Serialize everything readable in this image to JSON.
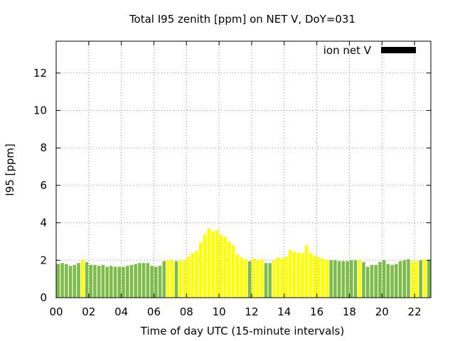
{
  "chart_data": {
    "type": "bar",
    "title": "Total I95 zenith [ppm] on NET V, DoY=031",
    "xlabel": "Time of day UTC (15-minute intervals)",
    "ylabel": "I95 [ppm]",
    "xlim": [
      0,
      23
    ],
    "ylim": [
      0,
      13.7
    ],
    "grid": true,
    "legend": {
      "position": "top-right",
      "entries": [
        "ion net V"
      ]
    },
    "x_ticks": [
      "00",
      "02",
      "04",
      "06",
      "08",
      "10",
      "12",
      "14",
      "16",
      "18",
      "20",
      "22"
    ],
    "y_ticks": [
      "0",
      "2",
      "4",
      "6",
      "8",
      "10",
      "12"
    ],
    "colors": {
      "green": "#7cbc48",
      "yellow": "#ffff00",
      "legend": "#000000",
      "grid": "#888888"
    },
    "x": [
      0.125,
      0.375,
      0.625,
      0.875,
      1.125,
      1.375,
      1.625,
      1.875,
      2.125,
      2.375,
      2.625,
      2.875,
      3.125,
      3.375,
      3.625,
      3.875,
      4.125,
      4.375,
      4.625,
      4.875,
      5.125,
      5.375,
      5.625,
      5.875,
      6.125,
      6.375,
      6.625,
      6.875,
      7.125,
      7.375,
      7.625,
      7.875,
      8.125,
      8.375,
      8.625,
      8.875,
      9.125,
      9.375,
      9.625,
      9.875,
      10.125,
      10.375,
      10.625,
      10.875,
      11.125,
      11.375,
      11.625,
      11.875,
      12.125,
      12.375,
      12.625,
      12.875,
      13.125,
      13.375,
      13.625,
      13.875,
      14.125,
      14.375,
      14.625,
      14.875,
      15.125,
      15.375,
      15.625,
      15.875,
      16.125,
      16.375,
      16.625,
      16.875,
      17.125,
      17.375,
      17.625,
      17.875,
      18.125,
      18.375,
      18.625,
      18.875,
      19.125,
      19.375,
      19.625,
      19.875,
      20.125,
      20.375,
      20.625,
      20.875,
      21.125,
      21.375,
      21.625,
      21.875,
      22.125,
      22.375,
      22.625,
      22.875
    ],
    "values": [
      1.8,
      1.85,
      1.8,
      1.7,
      1.75,
      1.85,
      2.0,
      1.9,
      1.75,
      1.75,
      1.7,
      1.75,
      1.65,
      1.7,
      1.65,
      1.65,
      1.65,
      1.7,
      1.75,
      1.8,
      1.85,
      1.85,
      1.85,
      1.7,
      1.65,
      1.7,
      1.95,
      2.0,
      2.0,
      1.95,
      2.0,
      2.0,
      2.2,
      2.4,
      2.5,
      2.95,
      3.4,
      3.7,
      3.55,
      3.6,
      3.35,
      3.25,
      3.0,
      2.8,
      2.3,
      2.15,
      2.05,
      1.95,
      2.1,
      2.0,
      2.05,
      1.85,
      1.85,
      2.0,
      2.15,
      2.1,
      2.2,
      2.55,
      2.45,
      2.4,
      2.4,
      2.8,
      2.4,
      2.25,
      2.15,
      2.1,
      2.0,
      2.0,
      2.0,
      1.95,
      1.95,
      1.95,
      2.0,
      2.0,
      2.0,
      1.9,
      1.65,
      1.75,
      1.75,
      1.9,
      2.0,
      1.8,
      1.75,
      1.8,
      1.95,
      2.0,
      2.05,
      1.95,
      1.95,
      2.0,
      2.05,
      2.0
    ],
    "color_index": [
      "g",
      "g",
      "g",
      "g",
      "g",
      "g",
      "y",
      "g",
      "g",
      "g",
      "g",
      "g",
      "g",
      "g",
      "g",
      "g",
      "g",
      "g",
      "g",
      "g",
      "g",
      "g",
      "g",
      "g",
      "g",
      "g",
      "g",
      "y",
      "y",
      "g",
      "y",
      "y",
      "y",
      "y",
      "y",
      "y",
      "y",
      "y",
      "y",
      "y",
      "y",
      "y",
      "y",
      "y",
      "y",
      "y",
      "y",
      "g",
      "y",
      "y",
      "y",
      "g",
      "g",
      "y",
      "y",
      "y",
      "y",
      "y",
      "y",
      "y",
      "y",
      "y",
      "y",
      "y",
      "y",
      "y",
      "y",
      "g",
      "g",
      "g",
      "g",
      "g",
      "g",
      "g",
      "y",
      "g",
      "g",
      "g",
      "g",
      "g",
      "g",
      "g",
      "g",
      "g",
      "g",
      "g",
      "g",
      "y",
      "y",
      "g",
      "y",
      "g"
    ]
  }
}
